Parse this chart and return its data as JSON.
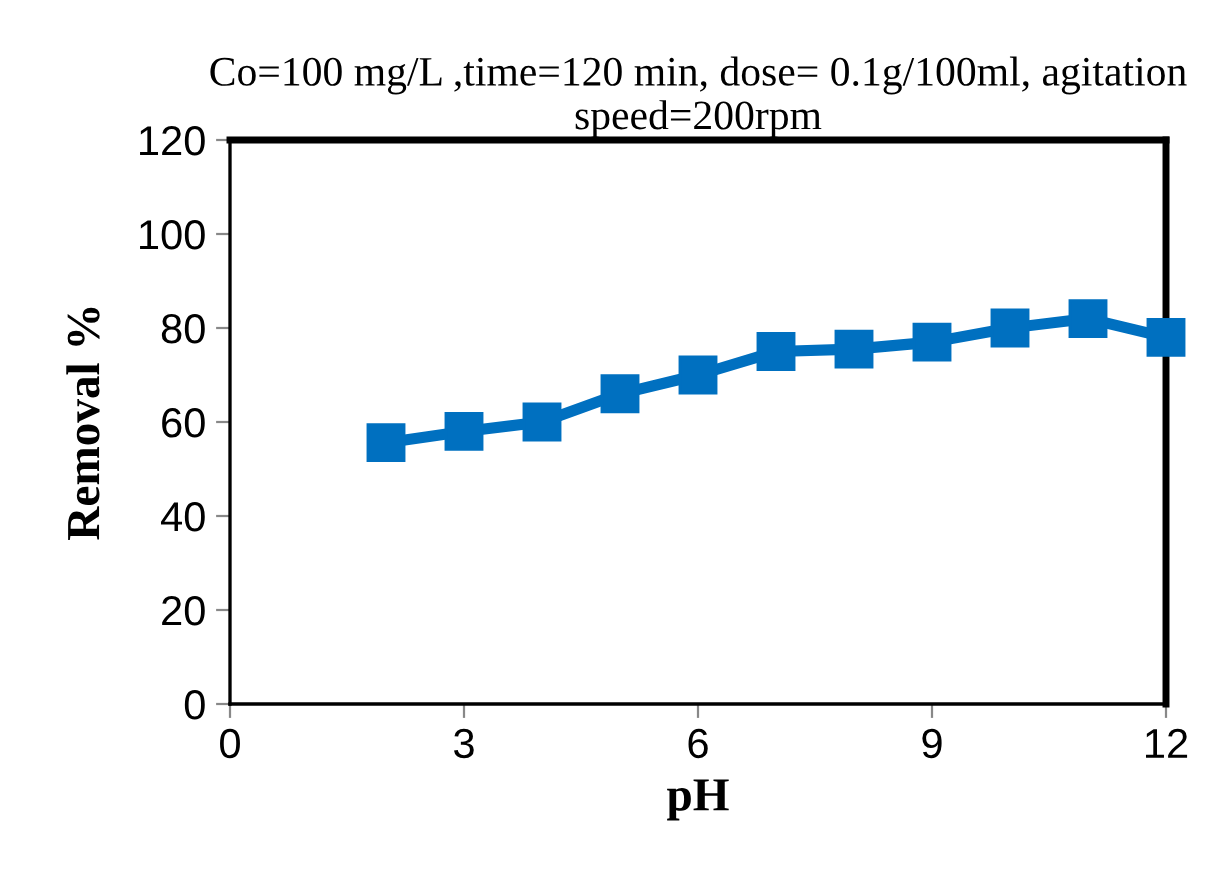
{
  "chart_data": {
    "type": "line",
    "title": "Co=100 mg/L ,time=120 min, dose= 0.1g/100ml, agitation speed=200rpm",
    "xlabel": "pH",
    "ylabel": "Removal %",
    "x": [
      2,
      3,
      4,
      5,
      6,
      7,
      8,
      9,
      10,
      11,
      12
    ],
    "series": [
      {
        "color": "#0070c0",
        "values": [
          55.6,
          58,
          60,
          66,
          70,
          75,
          75.5,
          77,
          80,
          82,
          78
        ]
      }
    ],
    "xlim": [
      0,
      12
    ],
    "ylim": [
      0,
      120
    ],
    "xticks": [
      0,
      3,
      6,
      9,
      12
    ],
    "yticks": [
      0,
      20,
      40,
      60,
      80,
      100,
      120
    ],
    "marker": "square",
    "line_style": "solid",
    "grid": false,
    "legend": false
  }
}
